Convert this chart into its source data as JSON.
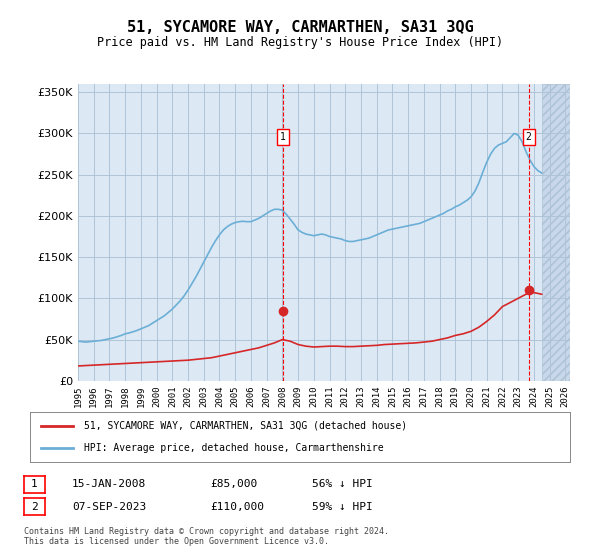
{
  "title": "51, SYCAMORE WAY, CARMARTHEN, SA31 3QG",
  "subtitle": "Price paid vs. HM Land Registry's House Price Index (HPI)",
  "bg_color": "#dce9f5",
  "plot_bg_color": "#dce9f5",
  "hatch_color": "#c0d0e8",
  "grid_color": "#b0c4d8",
  "ylim": [
    0,
    360000
  ],
  "yticks": [
    0,
    50000,
    100000,
    150000,
    200000,
    250000,
    300000,
    350000
  ],
  "ytick_labels": [
    "£0",
    "£50K",
    "£100K",
    "£150K",
    "£200K",
    "£250K",
    "£300K",
    "£350K"
  ],
  "xlabel_start_year": 1995,
  "xlabel_end_year": 2026,
  "marker1_date": 2008.04,
  "marker1_label": "1",
  "marker1_value": 85000,
  "marker2_date": 2023.67,
  "marker2_label": "2",
  "marker2_value": 110000,
  "hpi_color": "#6baed6",
  "price_color": "#d62728",
  "marker_color": "#d62728",
  "legend_label_price": "51, SYCAMORE WAY, CARMARTHEN, SA31 3QG (detached house)",
  "legend_label_hpi": "HPI: Average price, detached house, Carmarthenshire",
  "annotation1": "1     15-JAN-2008          £85,000        56% ↓ HPI",
  "annotation2": "2     07-SEP-2023          £110,000      59% ↓ HPI",
  "footer": "Contains HM Land Registry data © Crown copyright and database right 2024.\nThis data is licensed under the Open Government Licence v3.0.",
  "hpi_years": [
    1995,
    1995.25,
    1995.5,
    1995.75,
    1996,
    1996.25,
    1996.5,
    1996.75,
    1997,
    1997.25,
    1997.5,
    1997.75,
    1998,
    1998.25,
    1998.5,
    1998.75,
    1999,
    1999.25,
    1999.5,
    1999.75,
    2000,
    2000.25,
    2000.5,
    2000.75,
    2001,
    2001.25,
    2001.5,
    2001.75,
    2002,
    2002.25,
    2002.5,
    2002.75,
    2003,
    2003.25,
    2003.5,
    2003.75,
    2004,
    2004.25,
    2004.5,
    2004.75,
    2005,
    2005.25,
    2005.5,
    2005.75,
    2006,
    2006.25,
    2006.5,
    2006.75,
    2007,
    2007.25,
    2007.5,
    2007.75,
    2008,
    2008.25,
    2008.5,
    2008.75,
    2009,
    2009.25,
    2009.5,
    2009.75,
    2010,
    2010.25,
    2010.5,
    2010.75,
    2011,
    2011.25,
    2011.5,
    2011.75,
    2012,
    2012.25,
    2012.5,
    2012.75,
    2013,
    2013.25,
    2013.5,
    2013.75,
    2014,
    2014.25,
    2014.5,
    2014.75,
    2015,
    2015.25,
    2015.5,
    2015.75,
    2016,
    2016.25,
    2016.5,
    2016.75,
    2017,
    2017.25,
    2017.5,
    2017.75,
    2018,
    2018.25,
    2018.5,
    2018.75,
    2019,
    2019.25,
    2019.5,
    2019.75,
    2020,
    2020.25,
    2020.5,
    2020.75,
    2021,
    2021.25,
    2021.5,
    2021.75,
    2022,
    2022.25,
    2022.5,
    2022.75,
    2023,
    2023.25,
    2023.5,
    2023.75,
    2024,
    2024.25,
    2024.5
  ],
  "hpi_values": [
    48000,
    47500,
    47000,
    47500,
    48000,
    48500,
    49000,
    50000,
    51000,
    52000,
    53500,
    55000,
    57000,
    58000,
    59500,
    61000,
    63000,
    65000,
    67000,
    70000,
    73000,
    76000,
    79000,
    83000,
    87000,
    92000,
    97000,
    103000,
    110000,
    118000,
    126000,
    135000,
    144000,
    153000,
    162000,
    170000,
    177000,
    183000,
    187000,
    190000,
    192000,
    193000,
    193500,
    193000,
    193000,
    195000,
    197000,
    200000,
    203000,
    206000,
    208000,
    208000,
    207000,
    202000,
    196000,
    190000,
    183000,
    180000,
    178000,
    177000,
    176000,
    177000,
    178000,
    177000,
    175000,
    174000,
    173000,
    172000,
    170000,
    169000,
    169000,
    170000,
    171000,
    172000,
    173000,
    175000,
    177000,
    179000,
    181000,
    183000,
    184000,
    185000,
    186000,
    187000,
    188000,
    189000,
    190000,
    191000,
    193000,
    195000,
    197000,
    199000,
    201000,
    203000,
    206000,
    208000,
    211000,
    213000,
    216000,
    219000,
    223000,
    230000,
    240000,
    253000,
    265000,
    275000,
    282000,
    286000,
    288000,
    290000,
    295000,
    300000,
    298000,
    290000,
    278000,
    268000,
    260000,
    255000,
    252000
  ],
  "price_years": [
    1995,
    1995.5,
    1996,
    1996.5,
    1997,
    1997.5,
    1998,
    1998.5,
    1999,
    1999.5,
    2000,
    2000.5,
    2001,
    2001.5,
    2002,
    2002.5,
    2003,
    2003.5,
    2004,
    2004.5,
    2005,
    2005.5,
    2006,
    2006.5,
    2007,
    2007.5,
    2008,
    2008.5,
    2009,
    2009.5,
    2010,
    2010.5,
    2011,
    2011.5,
    2012,
    2012.5,
    2013,
    2013.5,
    2014,
    2014.5,
    2015,
    2015.5,
    2016,
    2016.5,
    2017,
    2017.5,
    2018,
    2018.5,
    2019,
    2019.5,
    2020,
    2020.5,
    2021,
    2021.5,
    2022,
    2022.5,
    2023,
    2023.5,
    2024,
    2024.5
  ],
  "price_values": [
    18000,
    18500,
    19000,
    19500,
    20000,
    20500,
    21000,
    21500,
    22000,
    22500,
    23000,
    23500,
    24000,
    24500,
    25000,
    26000,
    27000,
    28000,
    30000,
    32000,
    34000,
    36000,
    38000,
    40000,
    43000,
    46000,
    50000,
    48000,
    44000,
    42000,
    41000,
    41500,
    42000,
    42000,
    41500,
    41500,
    42000,
    42500,
    43000,
    44000,
    44500,
    45000,
    45500,
    46000,
    47000,
    48000,
    50000,
    52000,
    55000,
    57000,
    60000,
    65000,
    72000,
    80000,
    90000,
    95000,
    100000,
    105000,
    107000,
    105000
  ]
}
